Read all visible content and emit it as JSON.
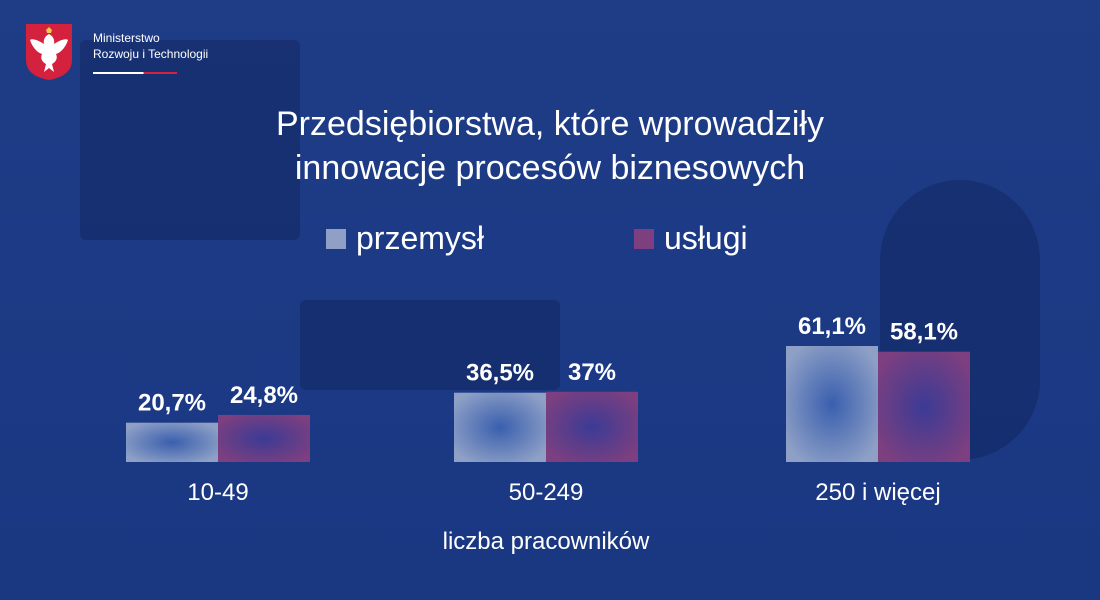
{
  "header": {
    "ministry_line1": "Ministerstwo",
    "ministry_line2": "Rozwoju i Technologii"
  },
  "colors": {
    "background": "#1c3a85",
    "przemysl": "#8ea0c6",
    "uslugi": "#7d3f7f",
    "text": "#ffffff",
    "flag_red": "#d4213d"
  },
  "icons": {
    "logo": "polish-eagle-emblem-icon"
  },
  "chart_data": {
    "type": "bar",
    "title_line1": "Przedsiębiorstwa, które wprowadziły",
    "title_line2": "innowacje procesów biznesowych",
    "xlabel": "liczba pracowników",
    "ylabel": "",
    "categories": [
      "10-49",
      "50-249",
      "250 i więcej"
    ],
    "series": [
      {
        "name": "przemysł",
        "values": [
          20.7,
          36.5,
          61.1
        ],
        "labels": [
          "20,7%",
          "36,5%",
          "61,1%"
        ]
      },
      {
        "name": "usługi",
        "values": [
          24.8,
          37,
          58.1
        ],
        "labels": [
          "24,8%",
          "37%",
          "58,1%"
        ]
      }
    ],
    "ylim": [
      0,
      61.1
    ],
    "grid": false,
    "legend": "top-center"
  }
}
